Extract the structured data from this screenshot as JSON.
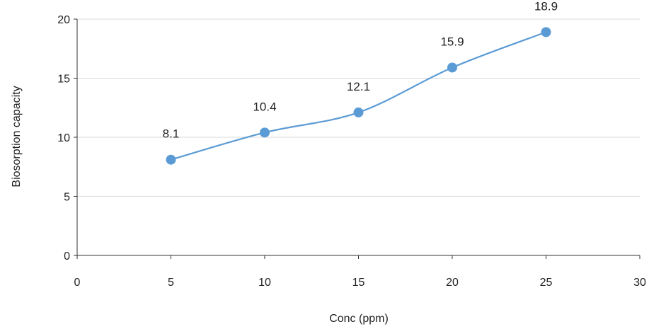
{
  "chart_data": {
    "type": "line",
    "smooth": true,
    "xlabel": "Conc (ppm)",
    "ylabel": "Biosorption capacity",
    "xlim": [
      0,
      30
    ],
    "ylim": [
      0,
      20
    ],
    "xticks": [
      0,
      5,
      10,
      15,
      20,
      25,
      30
    ],
    "yticks": [
      0,
      5,
      10,
      15,
      20
    ],
    "grid": true,
    "series": [
      {
        "color": "#5b9bd5",
        "points": [
          {
            "x": 5,
            "y": 8.1,
            "label": "8.1"
          },
          {
            "x": 10,
            "y": 10.4,
            "label": "10.4"
          },
          {
            "x": 15,
            "y": 12.1,
            "label": "12.1"
          },
          {
            "x": 20,
            "y": 15.9,
            "label": "15.9"
          },
          {
            "x": 25,
            "y": 18.9,
            "label": "18.9"
          }
        ]
      }
    ]
  }
}
